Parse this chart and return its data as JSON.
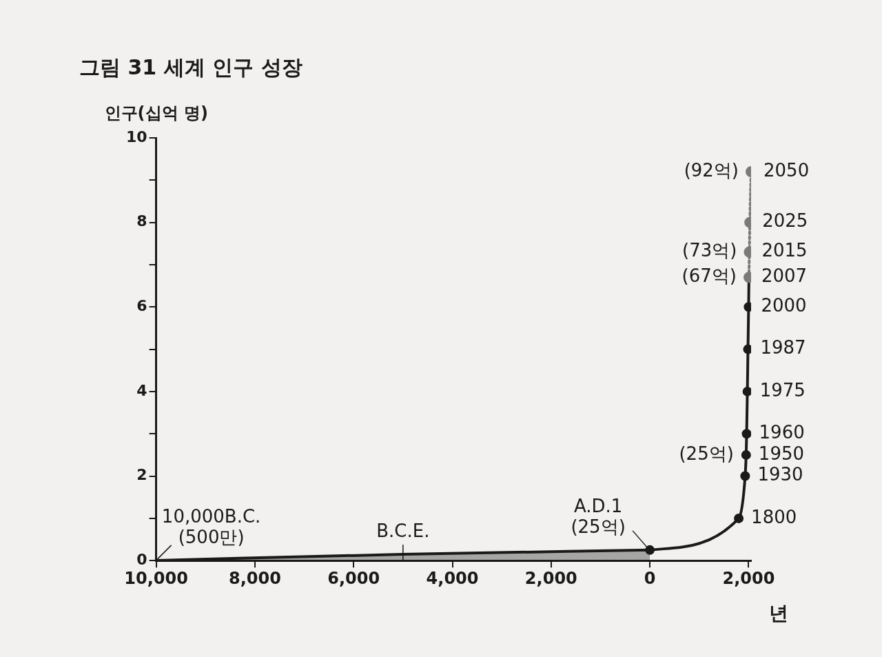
{
  "chart_data": {
    "type": "line",
    "title": "그림 31 세계 인구 성장",
    "xlabel": "년",
    "ylabel": "인구(십억 명)",
    "xlim": [
      -10000,
      2050
    ],
    "xticks": [
      {
        "value": -10000,
        "label": "10,000"
      },
      {
        "value": -8000,
        "label": "8,000"
      },
      {
        "value": -6000,
        "label": "6,000"
      },
      {
        "value": -4000,
        "label": "4,000"
      },
      {
        "value": -2000,
        "label": "2,000"
      },
      0,
      {
        "value": 2000,
        "label": "2,000"
      }
    ],
    "ylim": [
      0,
      10
    ],
    "yticks": [
      0,
      {
        "value": 1,
        "label": null
      },
      2,
      {
        "value": 3,
        "label": null
      },
      4,
      {
        "value": 5,
        "label": null
      },
      6,
      {
        "value": 7,
        "label": null
      },
      8,
      {
        "value": 9,
        "label": null
      },
      10
    ],
    "grid": false,
    "legend": false,
    "series": [
      {
        "type": "area",
        "color": "#1a1a1a",
        "marker": "none",
        "x": [
          -10000,
          -5000,
          0
        ],
        "values": [
          0.005,
          0.15,
          0.25
        ]
      },
      {
        "color": "#1a1a1a",
        "marker": "circle",
        "line_style": "solid",
        "x": [
          0,
          1800,
          1930,
          1950,
          1960,
          1975,
          1987,
          2000,
          2007
        ],
        "values": [
          0.25,
          1.0,
          2.0,
          2.5,
          3.0,
          4.0,
          5.0,
          6.0,
          6.7
        ]
      },
      {
        "type": "line",
        "color": "#7a7a7a",
        "marker": "circle",
        "line_style": "dotted",
        "x": [
          2007,
          2015,
          2025,
          2050
        ],
        "values": [
          6.7,
          7.3,
          8.0,
          9.2
        ]
      }
    ],
    "annotations": [
      {
        "text": "10,000B.C.\n(500만)",
        "x": -10000,
        "y": 0.005
      },
      {
        "text": "B.C.E.",
        "x": -5000,
        "y": 0.15
      },
      {
        "text": "A.D.1\n(25억)",
        "x": 0,
        "y": 0.25
      },
      {
        "text": "1800",
        "x": 1800,
        "y": 1.0
      },
      {
        "text": "1930",
        "x": 1930,
        "y": 2.0
      },
      {
        "text": "1950",
        "x": 1950,
        "y": 2.5
      },
      {
        "text": "(25억)",
        "x": 1950,
        "y": 2.5
      },
      {
        "text": "1960",
        "x": 1960,
        "y": 3.0
      },
      {
        "text": "1975",
        "x": 1975,
        "y": 4.0
      },
      {
        "text": "1987",
        "x": 1987,
        "y": 5.0
      },
      {
        "text": "2000",
        "x": 2000,
        "y": 6.0
      },
      {
        "text": "2007",
        "x": 2007,
        "y": 6.7
      },
      {
        "text": "(67억)",
        "x": 2007,
        "y": 6.7
      },
      {
        "text": "2015",
        "x": 2015,
        "y": 7.3
      },
      {
        "text": "(73억)",
        "x": 2015,
        "y": 7.3
      },
      {
        "text": "2025",
        "x": 2025,
        "y": 8.0
      },
      {
        "text": "2050",
        "x": 2050,
        "y": 9.2
      },
      {
        "text": "(92억)",
        "x": 2050,
        "y": 9.2
      }
    ]
  }
}
